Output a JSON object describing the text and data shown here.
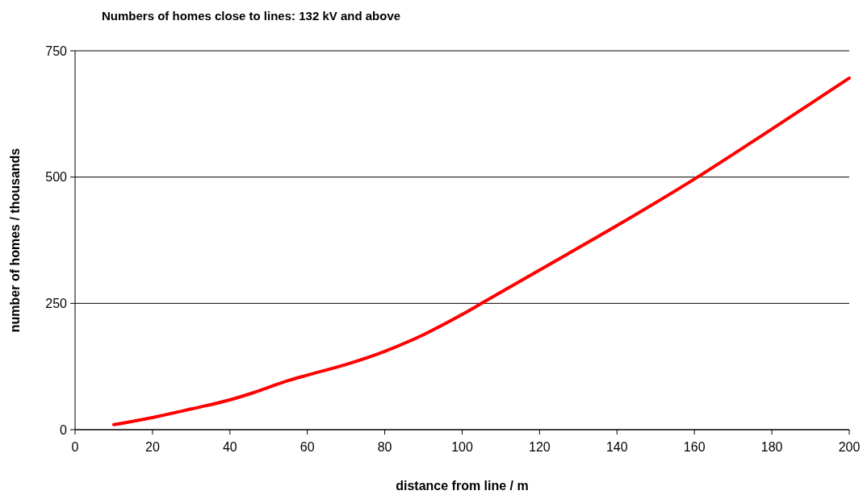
{
  "chart_data": {
    "type": "line",
    "title": "Numbers of homes close to lines: 132 kV and above",
    "xlabel": "distance from line  /  m",
    "ylabel": "number of homes  /  thousands",
    "x": [
      10,
      20,
      30,
      40,
      46,
      55,
      60,
      70,
      80,
      90,
      100,
      105,
      120,
      140,
      160,
      180,
      200
    ],
    "series": [
      {
        "color": "#ff0000",
        "values": [
          10,
          24,
          41,
          59,
          73,
          97,
          108,
          129,
          155,
          188,
          228,
          250,
          316,
          404,
          496,
          595,
          696
        ]
      }
    ],
    "xlim": [
      0,
      200
    ],
    "xticks": [
      0,
      20,
      40,
      60,
      80,
      100,
      120,
      140,
      160,
      180,
      200
    ],
    "ylim": [
      0,
      750
    ],
    "yticks": [
      0,
      250,
      500,
      750
    ],
    "grid": "y",
    "marker": "none",
    "line_style": "solid"
  }
}
